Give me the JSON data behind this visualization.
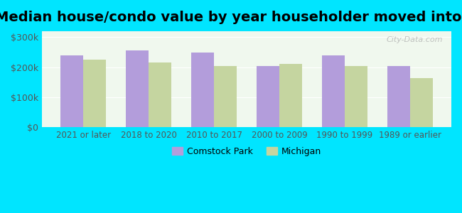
{
  "title": "Median house/condo value by year householder moved into unit",
  "categories": [
    "2021 or later",
    "2018 to 2020",
    "2010 to 2017",
    "2000 to 2009",
    "1990 to 1999",
    "1989 or earlier"
  ],
  "comstock_park": [
    240000,
    255000,
    248000,
    205000,
    240000,
    205000
  ],
  "michigan": [
    225000,
    215000,
    203000,
    210000,
    205000,
    163000
  ],
  "comstock_color": "#b39ddb",
  "michigan_color": "#c5d5a0",
  "background_outer": "#00e5ff",
  "background_inner": "#f0f8ee",
  "yticks": [
    0,
    100000,
    200000,
    300000
  ],
  "ylim": [
    0,
    320000
  ],
  "ylabel_labels": [
    "$0",
    "$100k",
    "$200k",
    "$300k"
  ],
  "legend_comstock": "Comstock Park",
  "legend_michigan": "Michigan",
  "title_fontsize": 14
}
